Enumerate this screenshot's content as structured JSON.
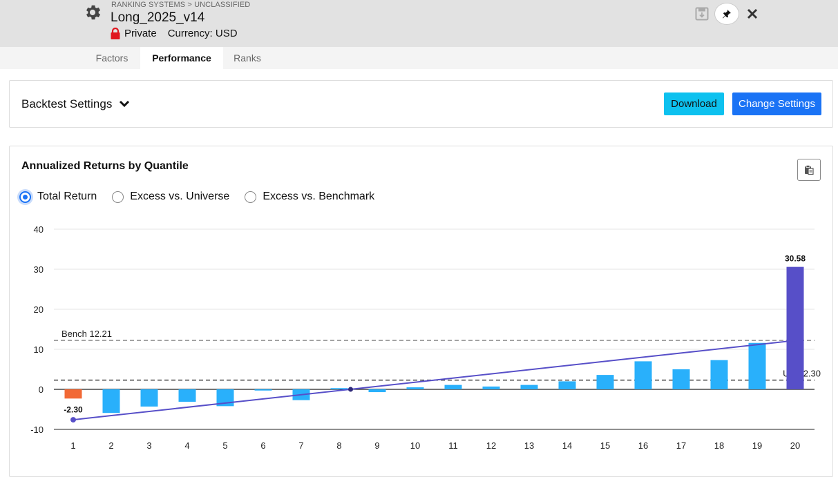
{
  "header": {
    "breadcrumb": "RANKING SYSTEMS > UNCLASSIFIED",
    "title": "Long_2025_v14",
    "privacy": "Private",
    "currency": "Currency: USD",
    "icons": {
      "settings": "gear-icon",
      "privacy": "lock-icon",
      "save": "save-icon",
      "pin": "pin-icon",
      "close": "close-icon"
    }
  },
  "tabs": [
    {
      "label": "Factors",
      "active": false
    },
    {
      "label": "Performance",
      "active": true
    },
    {
      "label": "Ranks",
      "active": false
    }
  ],
  "settings": {
    "title": "Backtest Settings",
    "download_label": "Download",
    "change_label": "Change Settings"
  },
  "chart_panel": {
    "title": "Annualized Returns by Quantile",
    "radios": [
      {
        "label": "Total Return",
        "checked": true
      },
      {
        "label": "Excess vs. Universe",
        "checked": false
      },
      {
        "label": "Excess vs. Benchmark",
        "checked": false
      }
    ]
  },
  "colors": {
    "bar": "#29b0fb",
    "bar_lowest": "#f26935",
    "bar_highest": "#574fc8",
    "trend": "#574fc8",
    "primary_button": "#1a73f5",
    "download_button": "#0dc1ef"
  },
  "chart_data": {
    "type": "bar",
    "categories": [
      "1",
      "2",
      "3",
      "4",
      "5",
      "6",
      "7",
      "8",
      "9",
      "10",
      "11",
      "12",
      "13",
      "14",
      "15",
      "16",
      "17",
      "18",
      "19",
      "20"
    ],
    "values": [
      -2.3,
      -5.9,
      -4.3,
      -3.1,
      -4.2,
      -0.3,
      -2.7,
      0.3,
      -0.7,
      0.5,
      1.1,
      0.7,
      1.1,
      2.0,
      3.6,
      7.0,
      5.0,
      7.3,
      11.6,
      30.58
    ],
    "ylim": [
      -10,
      40
    ],
    "yticks": [
      -10,
      0,
      10,
      20,
      30,
      40
    ],
    "grid": true,
    "reference_lines": [
      {
        "label": "Bench 12.21",
        "value": 12.21,
        "label_position": "left"
      },
      {
        "label": "Univ 2.30",
        "value": 2.3,
        "label_position": "right"
      }
    ],
    "data_labels": [
      {
        "category": "1",
        "text": "-2.30"
      },
      {
        "category": "20",
        "text": "30.58"
      }
    ],
    "trendline": {
      "start": [
        1,
        -7.6
      ],
      "end": [
        20,
        12.2
      ],
      "marker": [
        8.3,
        0.0
      ]
    }
  }
}
